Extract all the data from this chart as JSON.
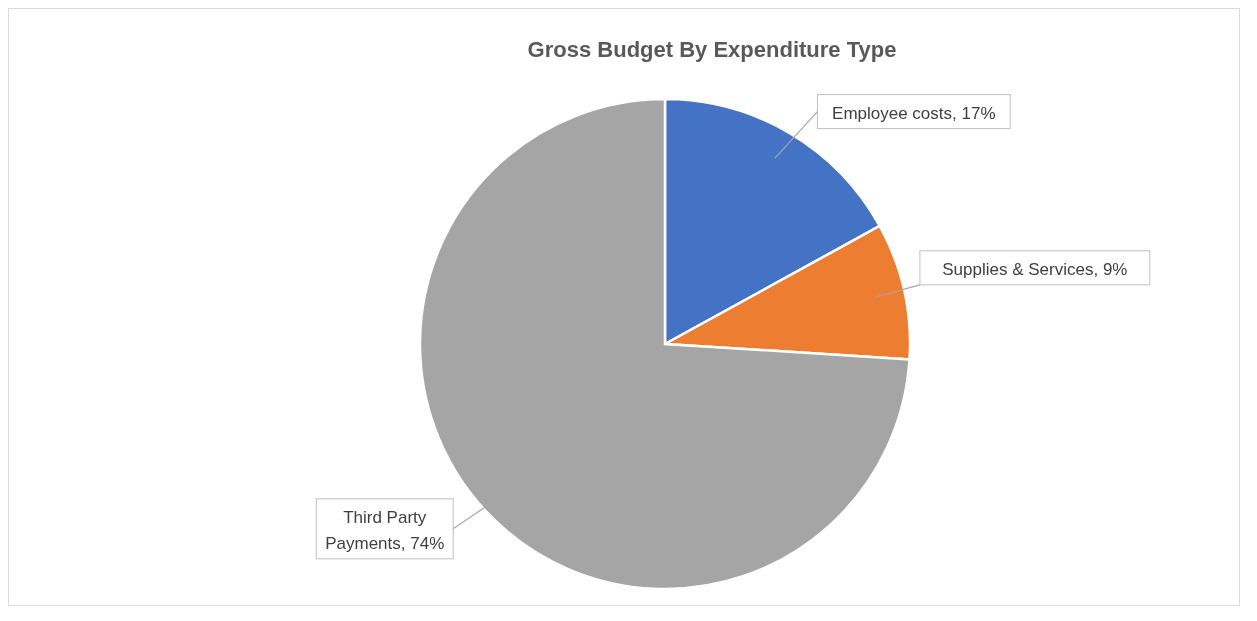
{
  "chart_data": {
    "type": "pie",
    "title": "Gross Budget By Expenditure Type",
    "categories": [
      "Employee costs",
      "Supplies & Services",
      "Third Party Payments"
    ],
    "values": [
      17,
      9,
      74
    ],
    "colors": [
      "#4472c4",
      "#ed7d31",
      "#a5a5a5"
    ],
    "value_labels": [
      "17%",
      "9%",
      "74%"
    ],
    "legend": false
  }
}
